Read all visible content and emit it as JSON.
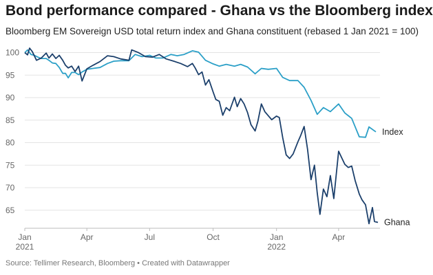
{
  "header": {
    "title": "Bond performance compared - Ghana vs the Bloomberg index",
    "subtitle": "Bloomberg EM Sovereign USD total return index and Ghana constituent (rebased 1 Jan 2021 = 100)"
  },
  "footer": {
    "source": "Source: Tellimer Research, Bloomberg • Created with Datawrapper"
  },
  "chart_data": {
    "type": "line",
    "title": "Bond performance compared - Ghana vs the Bloomberg index",
    "subtitle": "Bloomberg EM Sovereign USD total return index and Ghana constituent (rebased 1 Jan 2021 = 100)",
    "xlim": [
      "2021-01-01",
      "2022-05-31"
    ],
    "ylim": [
      61,
      101
    ],
    "y_ticks": [
      100,
      95,
      90,
      85,
      80,
      75,
      70,
      65
    ],
    "x_ticks": [
      {
        "date": "2021-01-01",
        "label": "Jan",
        "sublabel": "2021"
      },
      {
        "date": "2021-04-01",
        "label": "Apr",
        "sublabel": ""
      },
      {
        "date": "2021-07-01",
        "label": "Jul",
        "sublabel": ""
      },
      {
        "date": "2021-10-01",
        "label": "Oct",
        "sublabel": ""
      },
      {
        "date": "2022-01-01",
        "label": "Jan",
        "sublabel": "2022"
      },
      {
        "date": "2022-04-01",
        "label": "Apr",
        "sublabel": ""
      }
    ],
    "grid": true,
    "series": [
      {
        "name": "Index",
        "color": "#2a9fc7",
        "points": [
          [
            "2021-01-01",
            100.0
          ],
          [
            "2021-01-05",
            100.6
          ],
          [
            "2021-01-10",
            99.6
          ],
          [
            "2021-01-15",
            99.4
          ],
          [
            "2021-01-20",
            99.0
          ],
          [
            "2021-01-25",
            98.7
          ],
          [
            "2021-02-01",
            98.7
          ],
          [
            "2021-02-05",
            98.3
          ],
          [
            "2021-02-10",
            97.7
          ],
          [
            "2021-02-15",
            97.6
          ],
          [
            "2021-02-20",
            96.7
          ],
          [
            "2021-02-25",
            95.4
          ],
          [
            "2021-03-01",
            95.4
          ],
          [
            "2021-03-05",
            94.4
          ],
          [
            "2021-03-10",
            95.6
          ],
          [
            "2021-03-15",
            95.6
          ],
          [
            "2021-03-20",
            95.1
          ],
          [
            "2021-03-25",
            95.7
          ],
          [
            "2021-04-01",
            96.3
          ],
          [
            "2021-04-10",
            96.5
          ],
          [
            "2021-04-20",
            96.7
          ],
          [
            "2021-05-01",
            97.6
          ],
          [
            "2021-05-10",
            98.1
          ],
          [
            "2021-05-20",
            98.2
          ],
          [
            "2021-06-01",
            98.2
          ],
          [
            "2021-06-10",
            99.6
          ],
          [
            "2021-06-20",
            99.1
          ],
          [
            "2021-07-01",
            99.4
          ],
          [
            "2021-07-10",
            98.8
          ],
          [
            "2021-07-20",
            98.8
          ],
          [
            "2021-08-01",
            99.6
          ],
          [
            "2021-08-10",
            99.3
          ],
          [
            "2021-08-20",
            99.6
          ],
          [
            "2021-09-01",
            100.4
          ],
          [
            "2021-09-10",
            100.1
          ],
          [
            "2021-09-20",
            98.3
          ],
          [
            "2021-10-01",
            97.5
          ],
          [
            "2021-10-10",
            97.0
          ],
          [
            "2021-10-20",
            97.4
          ],
          [
            "2021-11-01",
            97.0
          ],
          [
            "2021-11-10",
            97.4
          ],
          [
            "2021-11-20",
            96.8
          ],
          [
            "2021-12-01",
            95.3
          ],
          [
            "2021-12-10",
            96.5
          ],
          [
            "2021-12-20",
            96.3
          ],
          [
            "2022-01-01",
            96.5
          ],
          [
            "2022-01-10",
            94.5
          ],
          [
            "2022-01-20",
            93.8
          ],
          [
            "2022-02-01",
            93.8
          ],
          [
            "2022-02-10",
            92.3
          ],
          [
            "2022-02-20",
            89.4
          ],
          [
            "2022-03-01",
            86.3
          ],
          [
            "2022-03-10",
            87.8
          ],
          [
            "2022-03-20",
            86.9
          ],
          [
            "2022-04-01",
            88.6
          ],
          [
            "2022-04-10",
            86.6
          ],
          [
            "2022-04-20",
            85.4
          ],
          [
            "2022-05-01",
            81.3
          ],
          [
            "2022-05-10",
            81.2
          ],
          [
            "2022-05-15",
            83.5
          ],
          [
            "2022-05-25",
            82.4
          ]
        ]
      },
      {
        "name": "Ghana",
        "color": "#1b3f6b",
        "points": [
          [
            "2021-01-01",
            100.0
          ],
          [
            "2021-01-05",
            99.5
          ],
          [
            "2021-01-08",
            101.0
          ],
          [
            "2021-01-12",
            100.2
          ],
          [
            "2021-01-18",
            98.3
          ],
          [
            "2021-01-25",
            98.8
          ],
          [
            "2021-02-01",
            99.9
          ],
          [
            "2021-02-05",
            98.8
          ],
          [
            "2021-02-10",
            99.7
          ],
          [
            "2021-02-15",
            98.7
          ],
          [
            "2021-02-20",
            99.4
          ],
          [
            "2021-02-25",
            98.3
          ],
          [
            "2021-03-01",
            97.2
          ],
          [
            "2021-03-05",
            96.6
          ],
          [
            "2021-03-10",
            97.0
          ],
          [
            "2021-03-15",
            95.8
          ],
          [
            "2021-03-20",
            97.0
          ],
          [
            "2021-03-25",
            93.7
          ],
          [
            "2021-04-01",
            96.4
          ],
          [
            "2021-04-10",
            97.2
          ],
          [
            "2021-04-20",
            98.0
          ],
          [
            "2021-05-01",
            99.3
          ],
          [
            "2021-05-10",
            99.1
          ],
          [
            "2021-05-20",
            98.6
          ],
          [
            "2021-06-01",
            98.3
          ],
          [
            "2021-06-05",
            100.6
          ],
          [
            "2021-06-15",
            100.0
          ],
          [
            "2021-06-25",
            99.1
          ],
          [
            "2021-07-05",
            99.0
          ],
          [
            "2021-07-15",
            99.6
          ],
          [
            "2021-07-25",
            98.6
          ],
          [
            "2021-08-05",
            98.1
          ],
          [
            "2021-08-15",
            97.6
          ],
          [
            "2021-08-25",
            96.9
          ],
          [
            "2021-09-01",
            97.6
          ],
          [
            "2021-09-05",
            96.6
          ],
          [
            "2021-09-10",
            95.1
          ],
          [
            "2021-09-15",
            95.7
          ],
          [
            "2021-09-20",
            92.8
          ],
          [
            "2021-09-25",
            94.0
          ],
          [
            "2021-10-01",
            91.3
          ],
          [
            "2021-10-05",
            89.6
          ],
          [
            "2021-10-10",
            89.2
          ],
          [
            "2021-10-15",
            86.1
          ],
          [
            "2021-10-20",
            87.8
          ],
          [
            "2021-10-25",
            87.1
          ],
          [
            "2021-11-01",
            90.1
          ],
          [
            "2021-11-05",
            88.0
          ],
          [
            "2021-11-10",
            89.8
          ],
          [
            "2021-11-15",
            88.6
          ],
          [
            "2021-11-20",
            86.7
          ],
          [
            "2021-11-25",
            84.0
          ],
          [
            "2021-12-01",
            82.6
          ],
          [
            "2021-12-05",
            84.8
          ],
          [
            "2021-12-10",
            88.6
          ],
          [
            "2021-12-15",
            86.9
          ],
          [
            "2021-12-20",
            86.0
          ],
          [
            "2021-12-25",
            85.1
          ],
          [
            "2022-01-01",
            85.9
          ],
          [
            "2022-01-05",
            85.6
          ],
          [
            "2022-01-10",
            81.1
          ],
          [
            "2022-01-15",
            77.3
          ],
          [
            "2022-01-20",
            76.5
          ],
          [
            "2022-01-25",
            77.5
          ],
          [
            "2022-02-01",
            80.2
          ],
          [
            "2022-02-05",
            81.6
          ],
          [
            "2022-02-10",
            83.6
          ],
          [
            "2022-02-15",
            78.5
          ],
          [
            "2022-02-20",
            71.8
          ],
          [
            "2022-02-25",
            75.0
          ],
          [
            "2022-03-01",
            68.9
          ],
          [
            "2022-03-05",
            64.1
          ],
          [
            "2022-03-10",
            69.7
          ],
          [
            "2022-03-15",
            68.0
          ],
          [
            "2022-03-20",
            72.7
          ],
          [
            "2022-03-25",
            67.6
          ],
          [
            "2022-04-01",
            78.1
          ],
          [
            "2022-04-05",
            76.8
          ],
          [
            "2022-04-10",
            75.2
          ],
          [
            "2022-04-15",
            74.5
          ],
          [
            "2022-04-20",
            74.8
          ],
          [
            "2022-04-25",
            71.6
          ],
          [
            "2022-05-01",
            68.6
          ],
          [
            "2022-05-05",
            67.3
          ],
          [
            "2022-05-10",
            66.2
          ],
          [
            "2022-05-15",
            62.0
          ],
          [
            "2022-05-20",
            65.6
          ],
          [
            "2022-05-23",
            62.5
          ],
          [
            "2022-05-28",
            62.3
          ]
        ]
      }
    ]
  }
}
